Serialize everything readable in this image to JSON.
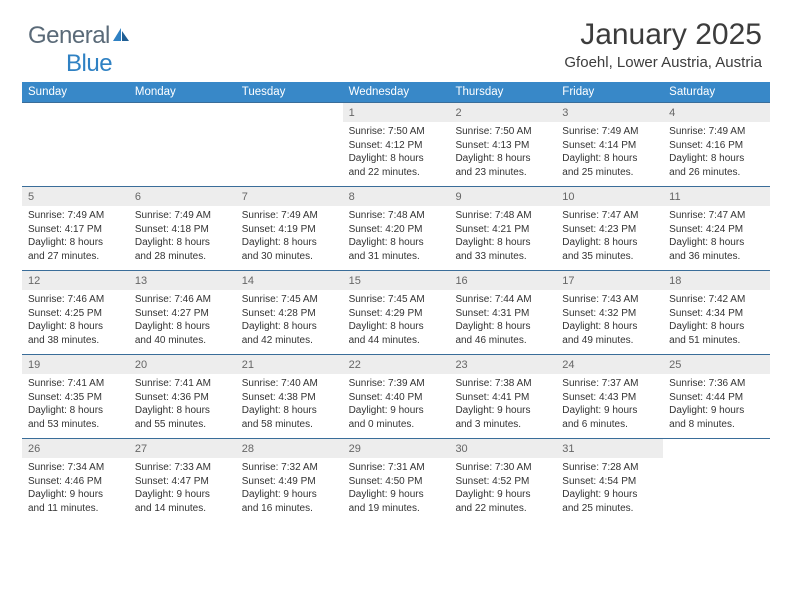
{
  "logo": {
    "part1": "General",
    "part2": "Blue"
  },
  "title": "January 2025",
  "location": "Gfoehl, Lower Austria, Austria",
  "colors": {
    "header_bg": "#3888c8",
    "header_text": "#ffffff",
    "rule": "#3a6d99",
    "daynum_bg": "#ededed",
    "daynum_text": "#666666",
    "body_text": "#333333",
    "logo_gray": "#5a6a78",
    "logo_blue": "#2f81c3",
    "background": "#ffffff"
  },
  "days_of_week": [
    "Sunday",
    "Monday",
    "Tuesday",
    "Wednesday",
    "Thursday",
    "Friday",
    "Saturday"
  ],
  "weeks": [
    [
      {
        "blank": true
      },
      {
        "blank": true
      },
      {
        "blank": true
      },
      {
        "n": "1",
        "sr": "7:50 AM",
        "ss": "4:12 PM",
        "dl": "8 hours and 22 minutes."
      },
      {
        "n": "2",
        "sr": "7:50 AM",
        "ss": "4:13 PM",
        "dl": "8 hours and 23 minutes."
      },
      {
        "n": "3",
        "sr": "7:49 AM",
        "ss": "4:14 PM",
        "dl": "8 hours and 25 minutes."
      },
      {
        "n": "4",
        "sr": "7:49 AM",
        "ss": "4:16 PM",
        "dl": "8 hours and 26 minutes."
      }
    ],
    [
      {
        "n": "5",
        "sr": "7:49 AM",
        "ss": "4:17 PM",
        "dl": "8 hours and 27 minutes."
      },
      {
        "n": "6",
        "sr": "7:49 AM",
        "ss": "4:18 PM",
        "dl": "8 hours and 28 minutes."
      },
      {
        "n": "7",
        "sr": "7:49 AM",
        "ss": "4:19 PM",
        "dl": "8 hours and 30 minutes."
      },
      {
        "n": "8",
        "sr": "7:48 AM",
        "ss": "4:20 PM",
        "dl": "8 hours and 31 minutes."
      },
      {
        "n": "9",
        "sr": "7:48 AM",
        "ss": "4:21 PM",
        "dl": "8 hours and 33 minutes."
      },
      {
        "n": "10",
        "sr": "7:47 AM",
        "ss": "4:23 PM",
        "dl": "8 hours and 35 minutes."
      },
      {
        "n": "11",
        "sr": "7:47 AM",
        "ss": "4:24 PM",
        "dl": "8 hours and 36 minutes."
      }
    ],
    [
      {
        "n": "12",
        "sr": "7:46 AM",
        "ss": "4:25 PM",
        "dl": "8 hours and 38 minutes."
      },
      {
        "n": "13",
        "sr": "7:46 AM",
        "ss": "4:27 PM",
        "dl": "8 hours and 40 minutes."
      },
      {
        "n": "14",
        "sr": "7:45 AM",
        "ss": "4:28 PM",
        "dl": "8 hours and 42 minutes."
      },
      {
        "n": "15",
        "sr": "7:45 AM",
        "ss": "4:29 PM",
        "dl": "8 hours and 44 minutes."
      },
      {
        "n": "16",
        "sr": "7:44 AM",
        "ss": "4:31 PM",
        "dl": "8 hours and 46 minutes."
      },
      {
        "n": "17",
        "sr": "7:43 AM",
        "ss": "4:32 PM",
        "dl": "8 hours and 49 minutes."
      },
      {
        "n": "18",
        "sr": "7:42 AM",
        "ss": "4:34 PM",
        "dl": "8 hours and 51 minutes."
      }
    ],
    [
      {
        "n": "19",
        "sr": "7:41 AM",
        "ss": "4:35 PM",
        "dl": "8 hours and 53 minutes."
      },
      {
        "n": "20",
        "sr": "7:41 AM",
        "ss": "4:36 PM",
        "dl": "8 hours and 55 minutes."
      },
      {
        "n": "21",
        "sr": "7:40 AM",
        "ss": "4:38 PM",
        "dl": "8 hours and 58 minutes."
      },
      {
        "n": "22",
        "sr": "7:39 AM",
        "ss": "4:40 PM",
        "dl": "9 hours and 0 minutes."
      },
      {
        "n": "23",
        "sr": "7:38 AM",
        "ss": "4:41 PM",
        "dl": "9 hours and 3 minutes."
      },
      {
        "n": "24",
        "sr": "7:37 AM",
        "ss": "4:43 PM",
        "dl": "9 hours and 6 minutes."
      },
      {
        "n": "25",
        "sr": "7:36 AM",
        "ss": "4:44 PM",
        "dl": "9 hours and 8 minutes."
      }
    ],
    [
      {
        "n": "26",
        "sr": "7:34 AM",
        "ss": "4:46 PM",
        "dl": "9 hours and 11 minutes."
      },
      {
        "n": "27",
        "sr": "7:33 AM",
        "ss": "4:47 PM",
        "dl": "9 hours and 14 minutes."
      },
      {
        "n": "28",
        "sr": "7:32 AM",
        "ss": "4:49 PM",
        "dl": "9 hours and 16 minutes."
      },
      {
        "n": "29",
        "sr": "7:31 AM",
        "ss": "4:50 PM",
        "dl": "9 hours and 19 minutes."
      },
      {
        "n": "30",
        "sr": "7:30 AM",
        "ss": "4:52 PM",
        "dl": "9 hours and 22 minutes."
      },
      {
        "n": "31",
        "sr": "7:28 AM",
        "ss": "4:54 PM",
        "dl": "9 hours and 25 minutes."
      },
      {
        "blank": true
      }
    ]
  ],
  "labels": {
    "sunrise": "Sunrise: ",
    "sunset": "Sunset: ",
    "daylight": "Daylight: "
  }
}
